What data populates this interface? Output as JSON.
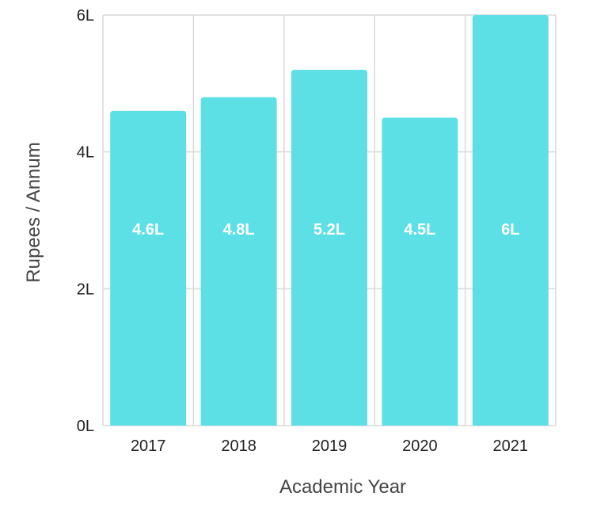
{
  "chart_data": {
    "type": "bar",
    "categories": [
      "2017",
      "2018",
      "2019",
      "2020",
      "2021"
    ],
    "values": [
      4.6,
      4.8,
      5.2,
      4.5,
      6
    ],
    "data_labels": [
      "4.6L",
      "4.8L",
      "5.2L",
      "4.5L",
      "6L"
    ],
    "y_ticks": [
      {
        "value": 0,
        "label": "0L"
      },
      {
        "value": 2,
        "label": "2L"
      },
      {
        "value": 4,
        "label": "4L"
      },
      {
        "value": 6,
        "label": "6L"
      }
    ],
    "xlabel": "Academic Year",
    "ylabel": "Rupees / Annum",
    "ylim": [
      0,
      6
    ],
    "grid": true,
    "bar_color": "#5ce0e6",
    "grid_color": "#d9d9d9"
  }
}
